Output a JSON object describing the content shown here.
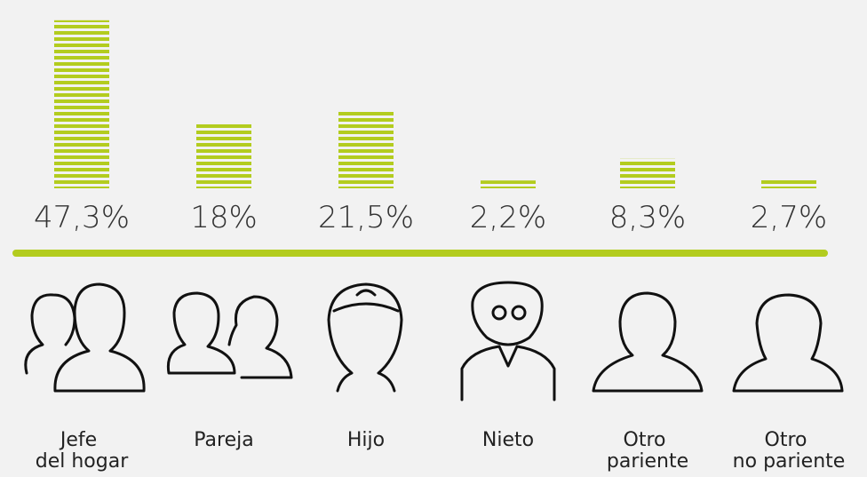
{
  "chart_data": {
    "type": "bar",
    "categories": [
      "Jefe del hogar",
      "Pareja",
      "Hijo",
      "Nieto",
      "Otro pariente",
      "Otro no pariente"
    ],
    "values": [
      47.3,
      18,
      21.5,
      2.2,
      8.3,
      2.7
    ],
    "value_labels": [
      "47,3%",
      "18%",
      "21,5%",
      "2,2%",
      "8,3%",
      "2,7%"
    ],
    "color": "#b3cc1f",
    "ylim": [
      0,
      50
    ]
  }
}
